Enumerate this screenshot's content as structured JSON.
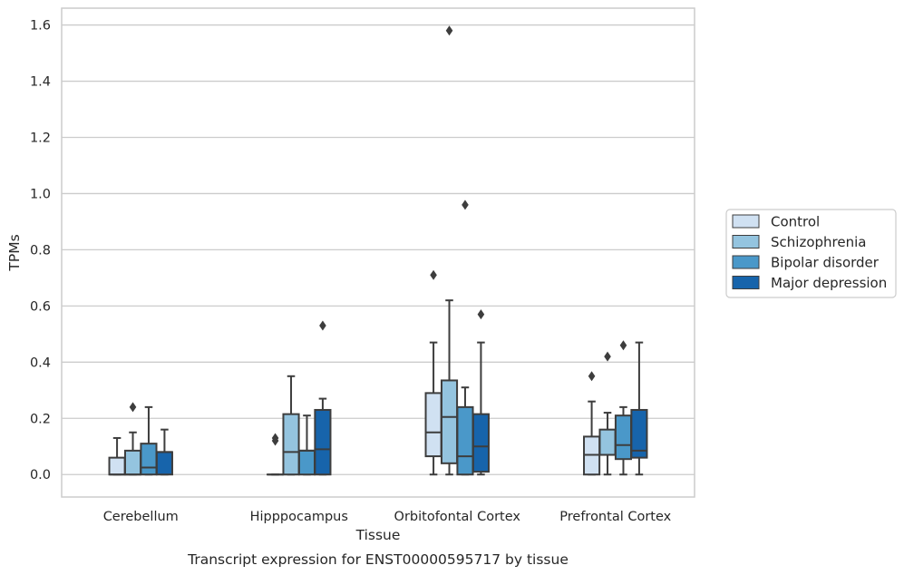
{
  "chart_data": {
    "type": "box",
    "xlabel": "Tissue",
    "ylabel": "TPMs",
    "caption": "Transcript expression for ENST00000595717 by tissue",
    "ylim": [
      -0.08,
      1.66
    ],
    "yticks": [
      "0.0",
      "0.2",
      "0.4",
      "0.6",
      "0.8",
      "1.0",
      "1.2",
      "1.4",
      "1.6"
    ],
    "grid": "horizontal",
    "legend_position": "right",
    "categories": [
      "Cerebellum",
      "Hipppocampus",
      "Orbitofontal Cortex",
      "Prefrontal Cortex"
    ],
    "series": [
      {
        "name": "Control",
        "color": "#d0e1f2",
        "boxes": [
          {
            "whisker_low": 0.0,
            "q1": 0.0,
            "median": 0.0,
            "q3": 0.06,
            "whisker_high": 0.13,
            "outliers": []
          },
          {
            "whisker_low": 0.0,
            "q1": 0.0,
            "median": 0.0,
            "q3": 0.0,
            "whisker_high": 0.0,
            "outliers": [
              0.12,
              0.13
            ]
          },
          {
            "whisker_low": 0.0,
            "q1": 0.065,
            "median": 0.15,
            "q3": 0.29,
            "whisker_high": 0.47,
            "outliers": [
              0.71
            ]
          },
          {
            "whisker_low": 0.0,
            "q1": 0.0,
            "median": 0.07,
            "q3": 0.135,
            "whisker_high": 0.26,
            "outliers": [
              0.35
            ]
          }
        ]
      },
      {
        "name": "Schizophrenia",
        "color": "#94c4df",
        "boxes": [
          {
            "whisker_low": 0.0,
            "q1": 0.0,
            "median": 0.0,
            "q3": 0.085,
            "whisker_high": 0.15,
            "outliers": [
              0.24
            ]
          },
          {
            "whisker_low": 0.0,
            "q1": 0.0,
            "median": 0.08,
            "q3": 0.215,
            "whisker_high": 0.35,
            "outliers": []
          },
          {
            "whisker_low": 0.0,
            "q1": 0.04,
            "median": 0.205,
            "q3": 0.335,
            "whisker_high": 0.62,
            "outliers": [
              1.58
            ]
          },
          {
            "whisker_low": 0.0,
            "q1": 0.07,
            "median": 0.07,
            "q3": 0.16,
            "whisker_high": 0.22,
            "outliers": [
              0.42
            ]
          }
        ]
      },
      {
        "name": "Bipolar disorder",
        "color": "#4a98c9",
        "boxes": [
          {
            "whisker_low": 0.0,
            "q1": 0.0,
            "median": 0.025,
            "q3": 0.11,
            "whisker_high": 0.24,
            "outliers": []
          },
          {
            "whisker_low": 0.0,
            "q1": 0.0,
            "median": 0.085,
            "q3": 0.085,
            "whisker_high": 0.21,
            "outliers": []
          },
          {
            "whisker_low": 0.0,
            "q1": 0.0,
            "median": 0.065,
            "q3": 0.24,
            "whisker_high": 0.31,
            "outliers": [
              0.96
            ]
          },
          {
            "whisker_low": 0.0,
            "q1": 0.055,
            "median": 0.105,
            "q3": 0.21,
            "whisker_high": 0.24,
            "outliers": [
              0.46
            ]
          }
        ]
      },
      {
        "name": "Major depression",
        "color": "#1764ab",
        "boxes": [
          {
            "whisker_low": 0.0,
            "q1": 0.0,
            "median": 0.08,
            "q3": 0.08,
            "whisker_high": 0.16,
            "outliers": []
          },
          {
            "whisker_low": 0.0,
            "q1": 0.0,
            "median": 0.09,
            "q3": 0.23,
            "whisker_high": 0.27,
            "outliers": [
              0.53
            ]
          },
          {
            "whisker_low": 0.0,
            "q1": 0.01,
            "median": 0.1,
            "q3": 0.215,
            "whisker_high": 0.47,
            "outliers": [
              0.57
            ]
          },
          {
            "whisker_low": 0.0,
            "q1": 0.06,
            "median": 0.085,
            "q3": 0.23,
            "whisker_high": 0.47,
            "outliers": []
          }
        ]
      }
    ]
  }
}
